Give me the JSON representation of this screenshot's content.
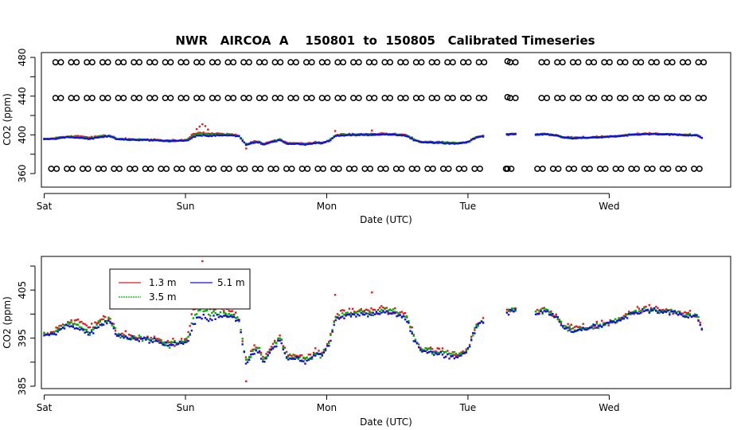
{
  "figure": {
    "title": "NWR   AIRCOA  A    150801  to  150805   Calibrated Timeseries"
  },
  "chart_data": [
    {
      "type": "scatter",
      "xlabel": "Date (UTC)",
      "ylabel": "CO2 (ppm)",
      "x_range_days": [
        -0.02,
        4.86
      ],
      "ylim": [
        346,
        485
      ],
      "yticks": [
        360,
        380,
        400,
        420,
        440,
        460,
        480
      ],
      "ytick_labels": [
        "360",
        "",
        "400",
        "",
        "440",
        "",
        "480"
      ],
      "xticks": [
        0,
        1,
        2,
        3,
        4
      ],
      "xtick_labels": [
        "Sat",
        "Sun",
        "Mon",
        "Tue",
        "Wed"
      ],
      "reference_series": {
        "marker": "open-circle",
        "levels_ppm": [
          475,
          438,
          365
        ],
        "interval_days": 0.111,
        "start_day": 0.08,
        "gap_days": [
          [
            3.12,
            3.27
          ],
          [
            3.34,
            3.48
          ]
        ],
        "extra_points": [
          [
            3.28,
            476
          ],
          [
            3.28,
            439
          ],
          [
            3.28,
            365
          ]
        ]
      },
      "series_colors": [
        "#e31a1c",
        "#00b000",
        "#1010e0"
      ]
    },
    {
      "type": "scatter",
      "xlabel": "Date (UTC)",
      "ylabel": "CO2 (ppm)",
      "x_range_days": [
        -0.02,
        4.86
      ],
      "ylim": [
        384.5,
        412
      ],
      "yticks": [
        385,
        390,
        395,
        400,
        405,
        410
      ],
      "ytick_labels": [
        "385",
        "",
        "395",
        "",
        "405",
        ""
      ],
      "xticks": [
        0,
        1,
        2,
        3,
        4
      ],
      "xtick_labels": [
        "Sat",
        "Sun",
        "Mon",
        "Tue",
        "Wed"
      ],
      "legend": {
        "placement": "top-left",
        "entries": [
          {
            "label": "1.3 m",
            "color": "#e31a1c"
          },
          {
            "label": "5.1 m",
            "color": "#1010e0"
          },
          {
            "label": "3.5 m",
            "color": "#00b000"
          }
        ]
      },
      "series_colors": [
        "#e31a1c",
        "#00b000",
        "#1010e0"
      ]
    }
  ],
  "co2_profile": {
    "day_range": [
      0.0,
      4.66
    ],
    "step_days": 0.012,
    "gap_days": [
      3.12,
      3.27
    ],
    "gap2_days": [
      3.34,
      3.48
    ],
    "anchors": [
      [
        0.0,
        395.5
      ],
      [
        0.05,
        395.6
      ],
      [
        0.1,
        396.5
      ],
      [
        0.18,
        397.5
      ],
      [
        0.25,
        397.0
      ],
      [
        0.32,
        395.5
      ],
      [
        0.36,
        397.0
      ],
      [
        0.42,
        398.0
      ],
      [
        0.47,
        398.5
      ],
      [
        0.52,
        395.5
      ],
      [
        0.6,
        395.0
      ],
      [
        0.7,
        394.8
      ],
      [
        0.8,
        394.2
      ],
      [
        0.88,
        393.5
      ],
      [
        0.95,
        394.0
      ],
      [
        1.02,
        394.5
      ],
      [
        1.05,
        398.0
      ],
      [
        1.1,
        399.5
      ],
      [
        1.18,
        399.0
      ],
      [
        1.25,
        399.5
      ],
      [
        1.33,
        399.5
      ],
      [
        1.38,
        398.5
      ],
      [
        1.43,
        389.5
      ],
      [
        1.48,
        392.0
      ],
      [
        1.52,
        392.5
      ],
      [
        1.55,
        390.0
      ],
      [
        1.6,
        392.0
      ],
      [
        1.67,
        395.0
      ],
      [
        1.72,
        390.5
      ],
      [
        1.78,
        391.0
      ],
      [
        1.85,
        390.0
      ],
      [
        1.92,
        391.5
      ],
      [
        1.97,
        391.5
      ],
      [
        2.02,
        394.0
      ],
      [
        2.06,
        399.0
      ],
      [
        2.12,
        399.5
      ],
      [
        2.2,
        400.0
      ],
      [
        2.3,
        400.0
      ],
      [
        2.4,
        400.5
      ],
      [
        2.5,
        400.0
      ],
      [
        2.57,
        399.0
      ],
      [
        2.62,
        394.5
      ],
      [
        2.67,
        392.5
      ],
      [
        2.75,
        392.0
      ],
      [
        2.85,
        391.5
      ],
      [
        2.93,
        391.0
      ],
      [
        3.0,
        392.5
      ],
      [
        3.04,
        396.0
      ],
      [
        3.08,
        398.0
      ],
      [
        3.12,
        398.5
      ],
      [
        3.27,
        400.2
      ],
      [
        3.34,
        400.8
      ],
      [
        3.48,
        400.0
      ],
      [
        3.55,
        400.5
      ],
      [
        3.62,
        399.5
      ],
      [
        3.68,
        397.0
      ],
      [
        3.75,
        396.5
      ],
      [
        3.85,
        397.0
      ],
      [
        3.95,
        397.5
      ],
      [
        4.05,
        398.5
      ],
      [
        4.12,
        399.5
      ],
      [
        4.2,
        400.5
      ],
      [
        4.3,
        400.8
      ],
      [
        4.4,
        400.5
      ],
      [
        4.5,
        400.0
      ],
      [
        4.58,
        399.5
      ],
      [
        4.62,
        399.5
      ],
      [
        4.66,
        396.5
      ]
    ],
    "surface_extra": [
      [
        0.0,
        0.3
      ],
      [
        0.25,
        1.5
      ],
      [
        0.4,
        1.0
      ],
      [
        0.55,
        0.3
      ],
      [
        1.0,
        0.3
      ],
      [
        1.05,
        2.5
      ],
      [
        1.1,
        3.0
      ],
      [
        1.2,
        2.0
      ],
      [
        1.3,
        1.0
      ],
      [
        1.4,
        0.5
      ],
      [
        1.5,
        0.8
      ],
      [
        2.0,
        0.4
      ],
      [
        2.1,
        0.8
      ],
      [
        2.3,
        0.5
      ],
      [
        2.6,
        0.5
      ],
      [
        3.0,
        0.4
      ],
      [
        4.0,
        0.3
      ],
      [
        4.66,
        0.4
      ]
    ],
    "outliers_surface": [
      [
        1.12,
        411.0
      ],
      [
        1.1,
        408.5
      ],
      [
        1.14,
        409.0
      ],
      [
        1.43,
        386.0
      ],
      [
        2.06,
        404.0
      ],
      [
        2.32,
        404.5
      ],
      [
        1.08,
        406.0
      ],
      [
        1.16,
        405.5
      ]
    ]
  }
}
